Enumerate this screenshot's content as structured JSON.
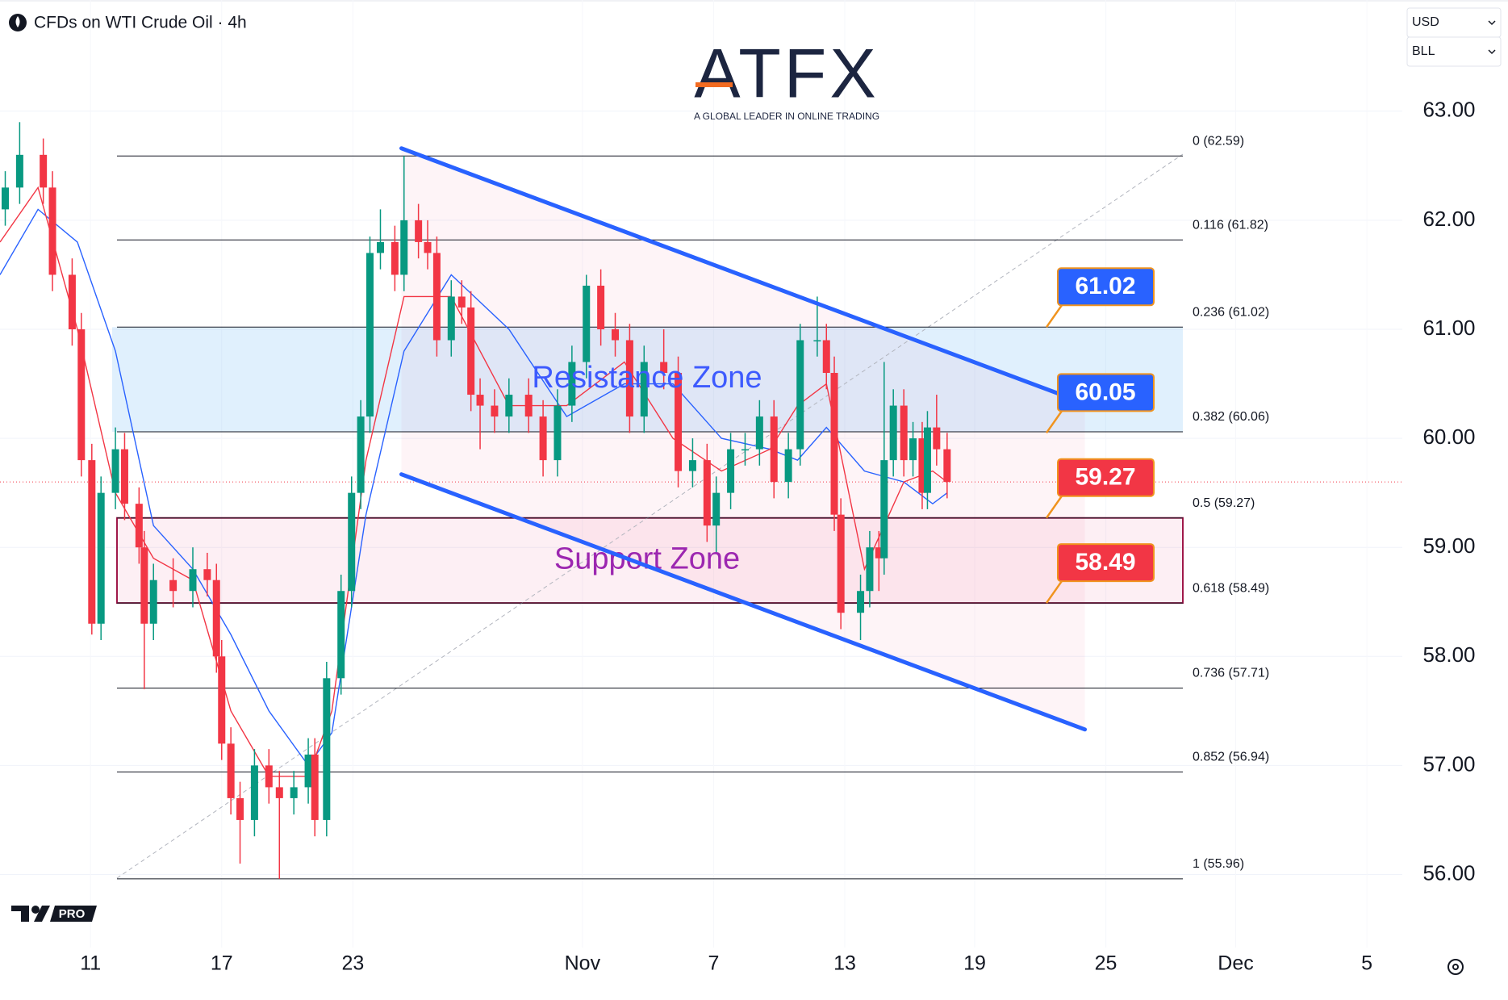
{
  "chart_data": {
    "type": "candlestick",
    "title": "CFDs on WTI Crude Oil · 4h",
    "currency": "USD",
    "unit": "BLL",
    "brand": "ATFX",
    "tagline": "A GLOBAL LEADER IN ONLINE TRADING",
    "watermark": "PRO",
    "up_color": "#089981",
    "down_color": "#f23645",
    "grid": true,
    "xlim": [
      -0.69,
      10.0
    ],
    "ylim": [
      55.33,
      64.02
    ],
    "xticks": [
      {
        "value": 0,
        "label": "11"
      },
      {
        "value": 1,
        "label": "17"
      },
      {
        "value": 2,
        "label": "23"
      },
      {
        "value": 3.75,
        "label": "Nov"
      },
      {
        "value": 4.75,
        "label": "7"
      },
      {
        "value": 5.75,
        "label": "13"
      },
      {
        "value": 6.74,
        "label": "19"
      },
      {
        "value": 7.74,
        "label": "25"
      },
      {
        "value": 8.73,
        "label": "Dec"
      },
      {
        "value": 9.73,
        "label": "5"
      }
    ],
    "yticks": [
      {
        "value": 56,
        "label": "56.00"
      },
      {
        "value": 57,
        "label": "57.00"
      },
      {
        "value": 58,
        "label": "58.00"
      },
      {
        "value": 59,
        "label": "59.00"
      },
      {
        "value": 60,
        "label": "60.00"
      },
      {
        "value": 61,
        "label": "61.00"
      },
      {
        "value": 62,
        "label": "62.00"
      },
      {
        "value": 63,
        "label": "63.00"
      }
    ],
    "x": [
      -0.65,
      -0.54,
      -0.36,
      -0.29,
      -0.14,
      -0.07,
      0.01,
      0.08,
      0.19,
      0.26,
      0.37,
      0.41,
      0.48,
      0.63,
      0.78,
      0.89,
      0.96,
      1.0,
      1.07,
      1.14,
      1.25,
      1.36,
      1.44,
      1.55,
      1.66,
      1.71,
      1.8,
      1.91,
      1.99,
      2.06,
      2.13,
      2.21,
      2.32,
      2.39,
      2.5,
      2.57,
      2.64,
      2.75,
      2.83,
      2.9,
      2.97,
      3.08,
      3.19,
      3.34,
      3.45,
      3.56,
      3.67,
      3.78,
      3.89,
      4.0,
      4.11,
      4.22,
      4.37,
      4.48,
      4.59,
      4.7,
      4.77,
      4.88,
      4.99,
      5.1,
      5.21,
      5.32,
      5.41,
      5.54,
      5.61,
      5.67,
      5.72,
      5.87,
      5.94,
      6.01,
      6.05,
      6.12,
      6.2,
      6.27,
      6.34,
      6.38,
      6.45,
      6.53
    ],
    "open": [
      62.1,
      62.3,
      62.6,
      62.3,
      61.5,
      61.0,
      59.8,
      58.3,
      59.5,
      59.9,
      59.4,
      59.0,
      58.3,
      58.7,
      58.6,
      58.8,
      58.7,
      58.0,
      57.2,
      56.7,
      56.5,
      57.0,
      56.8,
      56.7,
      56.8,
      57.1,
      56.5,
      57.8,
      58.6,
      59.5,
      60.2,
      61.7,
      61.8,
      61.5,
      62.0,
      61.8,
      61.7,
      60.9,
      61.3,
      61.2,
      60.4,
      60.3,
      60.2,
      60.4,
      60.2,
      59.8,
      60.3,
      60.7,
      61.4,
      61.0,
      60.9,
      60.2,
      60.7,
      60.6,
      59.7,
      59.8,
      59.2,
      59.5,
      59.9,
      59.9,
      60.2,
      59.6,
      59.9,
      60.9,
      60.9,
      60.6,
      59.3,
      58.4,
      58.6,
      59.0,
      58.9,
      59.8,
      60.3,
      59.8,
      60.0,
      59.5,
      60.1,
      59.9
    ],
    "high": [
      62.45,
      62.9,
      62.75,
      62.45,
      61.65,
      61.15,
      59.95,
      59.65,
      60.1,
      60.05,
      59.55,
      59.15,
      58.85,
      58.9,
      59.0,
      58.95,
      58.85,
      58.15,
      57.35,
      56.85,
      57.15,
      57.15,
      56.95,
      56.95,
      57.25,
      57.25,
      57.95,
      58.75,
      59.65,
      60.35,
      61.85,
      62.1,
      61.95,
      62.59,
      62.15,
      62.0,
      61.85,
      61.45,
      61.45,
      61.35,
      60.55,
      60.45,
      60.55,
      60.55,
      60.35,
      60.45,
      60.85,
      61.5,
      61.55,
      61.15,
      61.05,
      60.85,
      61.0,
      60.75,
      60.0,
      59.95,
      59.65,
      60.05,
      60.05,
      60.35,
      60.35,
      60.05,
      61.05,
      61.3,
      61.05,
      60.75,
      59.45,
      58.75,
      59.15,
      59.15,
      60.7,
      60.45,
      60.45,
      60.15,
      60.15,
      60.25,
      60.4,
      60.05
    ],
    "low": [
      61.95,
      62.15,
      62.15,
      61.35,
      60.85,
      59.65,
      58.2,
      58.15,
      59.35,
      59.25,
      58.85,
      57.7,
      58.15,
      58.45,
      58.45,
      58.55,
      57.85,
      57.05,
      56.55,
      56.1,
      56.35,
      56.65,
      55.96,
      56.55,
      56.65,
      56.35,
      56.35,
      57.65,
      58.45,
      59.35,
      60.05,
      61.55,
      61.35,
      61.35,
      61.65,
      61.55,
      60.75,
      60.75,
      61.05,
      60.25,
      59.9,
      60.05,
      60.05,
      60.05,
      59.65,
      59.65,
      60.15,
      60.55,
      60.85,
      60.75,
      60.05,
      60.05,
      60.45,
      59.55,
      59.55,
      59.05,
      58.95,
      59.35,
      59.75,
      59.75,
      59.45,
      59.45,
      59.75,
      60.75,
      60.45,
      59.15,
      58.25,
      58.15,
      58.45,
      58.6,
      58.75,
      59.65,
      59.65,
      59.65,
      59.35,
      59.35,
      59.75,
      59.45
    ],
    "close": [
      62.3,
      62.6,
      62.3,
      61.5,
      61.0,
      59.8,
      58.3,
      59.5,
      59.9,
      59.4,
      59.0,
      58.3,
      58.7,
      58.6,
      58.8,
      58.7,
      58.0,
      57.2,
      56.7,
      56.5,
      57.0,
      56.8,
      56.7,
      56.8,
      57.1,
      56.5,
      57.8,
      58.6,
      59.5,
      60.2,
      61.7,
      61.8,
      61.5,
      62.0,
      61.8,
      61.7,
      60.9,
      61.3,
      61.2,
      60.4,
      60.3,
      60.2,
      60.4,
      60.2,
      59.8,
      60.3,
      60.7,
      61.4,
      61.0,
      60.9,
      60.2,
      60.7,
      60.6,
      59.7,
      59.8,
      59.2,
      59.5,
      59.9,
      59.9,
      60.2,
      59.6,
      59.9,
      60.9,
      60.9,
      60.6,
      59.3,
      58.4,
      58.6,
      59.0,
      58.9,
      59.8,
      60.3,
      59.8,
      60.0,
      59.5,
      60.1,
      59.9,
      59.6
    ],
    "lines": [
      {
        "color": "#2962ff",
        "x": [
          -0.69,
          -0.4,
          -0.1,
          0.19,
          0.48,
          0.78,
          1.07,
          1.36,
          1.66,
          1.84,
          2.1,
          2.39,
          2.75,
          3.19,
          3.63,
          4.07,
          4.44,
          4.81,
          5.18,
          5.39,
          5.61,
          5.9,
          6.2,
          6.42,
          6.53
        ],
        "values": [
          61.5,
          62.1,
          61.8,
          60.8,
          59.2,
          58.8,
          58.2,
          57.5,
          57.0,
          57.3,
          59.3,
          60.8,
          61.5,
          61.0,
          60.2,
          60.5,
          60.5,
          60.0,
          59.9,
          59.8,
          60.1,
          59.7,
          59.6,
          59.4,
          59.5
        ]
      },
      {
        "color": "#f23645",
        "x": [
          -0.69,
          -0.4,
          -0.1,
          0.19,
          0.48,
          0.78,
          1.07,
          1.36,
          1.66,
          1.84,
          2.1,
          2.39,
          2.75,
          3.19,
          3.63,
          4.07,
          4.44,
          4.81,
          5.18,
          5.39,
          5.61,
          5.9,
          6.2,
          6.42,
          6.53
        ],
        "values": [
          61.8,
          62.3,
          61.0,
          59.5,
          58.9,
          58.7,
          57.5,
          56.9,
          56.9,
          57.5,
          59.8,
          61.3,
          61.3,
          60.3,
          60.3,
          60.7,
          60.0,
          59.7,
          59.9,
          60.3,
          60.5,
          58.8,
          59.6,
          59.7,
          59.6
        ]
      }
    ],
    "fib_levels": [
      {
        "label": "0 (62.59)",
        "value": 62.59
      },
      {
        "label": "0.116 (61.82)",
        "value": 61.82
      },
      {
        "label": "0.236 (61.02)",
        "value": 61.02
      },
      {
        "label": "0.382 (60.06)",
        "value": 60.06
      },
      {
        "label": "0.5 (59.27)",
        "value": 59.27
      },
      {
        "label": "0.618 (58.49)",
        "value": 58.49
      },
      {
        "label": "0.736 (57.71)",
        "value": 57.71
      },
      {
        "label": "0.852 (56.94)",
        "value": 56.94
      },
      {
        "label": "1 (55.96)",
        "value": 55.96
      }
    ],
    "zones": [
      {
        "label": "Resistance Zone",
        "low": 60.06,
        "high": 61.02,
        "color": "#3d5afe"
      },
      {
        "label": "Support Zone",
        "low": 58.49,
        "high": 59.27,
        "color": "#9c27b0"
      }
    ],
    "channel": {
      "upper": {
        "x": [
          2.37,
          7.58
        ],
        "values": [
          62.66,
          60.32
        ]
      },
      "lower": {
        "x": [
          2.37,
          7.58
        ],
        "values": [
          59.67,
          57.33
        ]
      }
    },
    "price_labels": [
      {
        "value": 61.02,
        "color": "#2962ff"
      },
      {
        "value": 60.05,
        "color": "#2962ff"
      },
      {
        "value": 59.27,
        "color": "#f23645"
      },
      {
        "value": 58.49,
        "color": "#f23645"
      }
    ]
  }
}
